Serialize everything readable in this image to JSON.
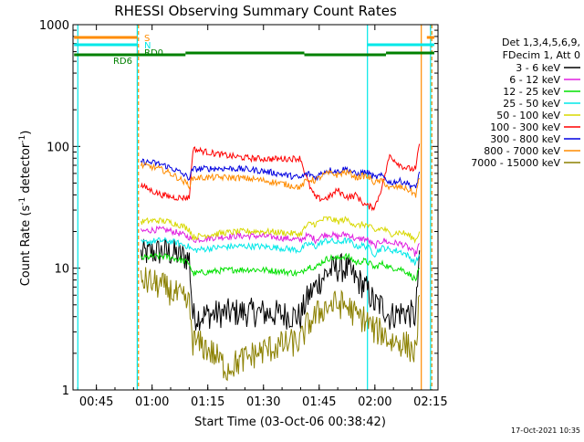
{
  "chart_data": {
    "type": "line",
    "title": "RHESSI Observing Summary Count Rates",
    "xlabel": "Start Time (03-Oct-06 00:38:42)",
    "ylabel_main": "Count Rate (s",
    "ylabel_sup1": "-1",
    "ylabel_mid": " detector",
    "ylabel_sup2": "-1",
    "ylabel_end": ")",
    "y_scale": "log",
    "ylim": [
      1,
      1000
    ],
    "xlim": [
      "00:38:42",
      "02:17:00"
    ],
    "x_ticks": [
      "00:45",
      "01:00",
      "01:15",
      "01:30",
      "01:45",
      "02:00",
      "02:15"
    ],
    "y_ticks": [
      "1",
      "10",
      "100",
      "1000"
    ],
    "legend_header": [
      "Det 1,3,4,5,6,9,",
      "FDecim 1, Att 0"
    ],
    "legend_placement": "right",
    "timestamp": "17-Oct-2021 10:35",
    "series": [
      {
        "name": "3 - 6 keV",
        "color": "#000000",
        "points": [
          [
            "00:57:00",
            13
          ],
          [
            "01:10:00",
            12
          ],
          [
            "01:11:00",
            4
          ],
          [
            "01:40:00",
            4
          ],
          [
            "01:44:00",
            7
          ],
          [
            "01:50:00",
            10
          ],
          [
            "01:55:00",
            8
          ],
          [
            "02:00:00",
            5
          ],
          [
            "02:04:00",
            4
          ],
          [
            "02:11:00",
            4
          ],
          [
            "02:12:00",
            14
          ]
        ]
      },
      {
        "name": "6 - 12 keV",
        "color": "#e020e0",
        "points": [
          [
            "00:57:00",
            20
          ],
          [
            "01:10:00",
            18
          ],
          [
            "01:11:00",
            17
          ],
          [
            "01:40:00",
            17
          ],
          [
            "01:44:00",
            17
          ],
          [
            "01:50:00",
            18
          ],
          [
            "01:55:00",
            17
          ],
          [
            "02:00:00",
            15
          ],
          [
            "02:04:00",
            16
          ],
          [
            "02:11:00",
            13
          ],
          [
            "02:12:00",
            16
          ]
        ]
      },
      {
        "name": "12 - 25 keV",
        "color": "#00e000",
        "points": [
          [
            "00:57:00",
            12
          ],
          [
            "01:10:00",
            11
          ],
          [
            "01:11:00",
            9
          ],
          [
            "01:40:00",
            9
          ],
          [
            "01:44:00",
            10
          ],
          [
            "01:50:00",
            12
          ],
          [
            "01:55:00",
            11
          ],
          [
            "02:00:00",
            10
          ],
          [
            "02:04:00",
            10
          ],
          [
            "02:11:00",
            8
          ],
          [
            "02:12:00",
            10
          ]
        ]
      },
      {
        "name": "25 - 50 keV",
        "color": "#00e8e8",
        "points": [
          [
            "00:57:00",
            16
          ],
          [
            "01:10:00",
            15
          ],
          [
            "01:11:00",
            14
          ],
          [
            "01:40:00",
            14
          ],
          [
            "01:44:00",
            15
          ],
          [
            "01:50:00",
            16
          ],
          [
            "01:55:00",
            15
          ],
          [
            "02:00:00",
            13
          ],
          [
            "02:04:00",
            14
          ],
          [
            "02:11:00",
            11
          ],
          [
            "02:12:00",
            13
          ]
        ]
      },
      {
        "name": "50 - 100 keV",
        "color": "#d8d800",
        "points": [
          [
            "00:57:00",
            24
          ],
          [
            "01:10:00",
            21
          ],
          [
            "01:11:00",
            18
          ],
          [
            "01:40:00",
            19
          ],
          [
            "01:44:00",
            23
          ],
          [
            "01:50:00",
            24
          ],
          [
            "01:55:00",
            22
          ],
          [
            "02:00:00",
            20
          ],
          [
            "02:04:00",
            19
          ],
          [
            "02:11:00",
            17
          ],
          [
            "02:12:00",
            20
          ]
        ]
      },
      {
        "name": "100 - 300 keV",
        "color": "#ff0000",
        "points": [
          [
            "00:57:00",
            48
          ],
          [
            "01:10:00",
            38
          ],
          [
            "01:11:00",
            95
          ],
          [
            "01:40:00",
            80
          ],
          [
            "01:44:00",
            38
          ],
          [
            "01:50:00",
            44
          ],
          [
            "01:55:00",
            40
          ],
          [
            "02:00:00",
            32
          ],
          [
            "02:04:00",
            85
          ],
          [
            "02:11:00",
            65
          ],
          [
            "02:12:00",
            105
          ]
        ]
      },
      {
        "name": "300 - 800 keV",
        "color": "#0000e0",
        "points": [
          [
            "00:57:00",
            75
          ],
          [
            "01:10:00",
            55
          ],
          [
            "01:11:00",
            65
          ],
          [
            "01:40:00",
            55
          ],
          [
            "01:44:00",
            55
          ],
          [
            "01:50:00",
            62
          ],
          [
            "01:55:00",
            58
          ],
          [
            "02:00:00",
            55
          ],
          [
            "02:04:00",
            50
          ],
          [
            "02:11:00",
            45
          ],
          [
            "02:12:00",
            62
          ]
        ]
      },
      {
        "name": "800 - 7000 keV",
        "color": "#ff8c00",
        "points": [
          [
            "00:57:00",
            70
          ],
          [
            "01:10:00",
            48
          ],
          [
            "01:11:00",
            55
          ],
          [
            "01:40:00",
            46
          ],
          [
            "01:44:00",
            52
          ],
          [
            "01:50:00",
            58
          ],
          [
            "01:55:00",
            55
          ],
          [
            "02:00:00",
            50
          ],
          [
            "02:04:00",
            45
          ],
          [
            "02:11:00",
            40
          ],
          [
            "02:12:00",
            55
          ]
        ]
      },
      {
        "name": "7000 - 15000 keV",
        "color": "#8b8000",
        "points": [
          [
            "00:57:00",
            8
          ],
          [
            "01:10:00",
            5
          ],
          [
            "01:11:00",
            2.5
          ],
          [
            "01:20:00",
            1.5
          ],
          [
            "01:40:00",
            2.5
          ],
          [
            "01:44:00",
            4
          ],
          [
            "01:50:00",
            5
          ],
          [
            "01:55:00",
            4
          ],
          [
            "02:00:00",
            3
          ],
          [
            "02:04:00",
            2.5
          ],
          [
            "02:11:00",
            2
          ],
          [
            "02:12:00",
            6
          ]
        ]
      }
    ],
    "flags": [
      {
        "name": "S",
        "color": "#ff8c00",
        "segments": [
          [
            "00:39:00",
            "00:56:00"
          ],
          [
            "02:14:00",
            "02:16:00"
          ]
        ]
      },
      {
        "name": "N",
        "color": "#00e8e8",
        "segments": [
          [
            "00:39:00",
            "00:56:00"
          ],
          [
            "01:58:00",
            "02:16:00"
          ]
        ]
      },
      {
        "name": "RD0",
        "color": "#008000",
        "segments": [
          [
            "01:09:00",
            "01:41:00"
          ],
          [
            "02:03:00",
            "02:16:00"
          ]
        ]
      },
      {
        "name": "RD6",
        "color": "#008000",
        "segments": [
          [
            "00:39:00",
            "01:09:00"
          ],
          [
            "01:41:00",
            "02:03:00"
          ]
        ]
      }
    ],
    "event_lines": [
      {
        "time": "00:40:00",
        "color": "#00e8e8",
        "style": "solid"
      },
      {
        "time": "00:56:00",
        "color": "#00e8e8",
        "style": "solid"
      },
      {
        "time": "00:56:20",
        "color": "#ff8c00",
        "style": "dashed"
      },
      {
        "time": "01:58:00",
        "color": "#00e8e8",
        "style": "solid"
      },
      {
        "time": "02:12:30",
        "color": "#ff8c00",
        "style": "solid"
      },
      {
        "time": "02:15:00",
        "color": "#00e8e8",
        "style": "solid"
      },
      {
        "time": "02:15:20",
        "color": "#ff8c00",
        "style": "dashed"
      }
    ]
  }
}
